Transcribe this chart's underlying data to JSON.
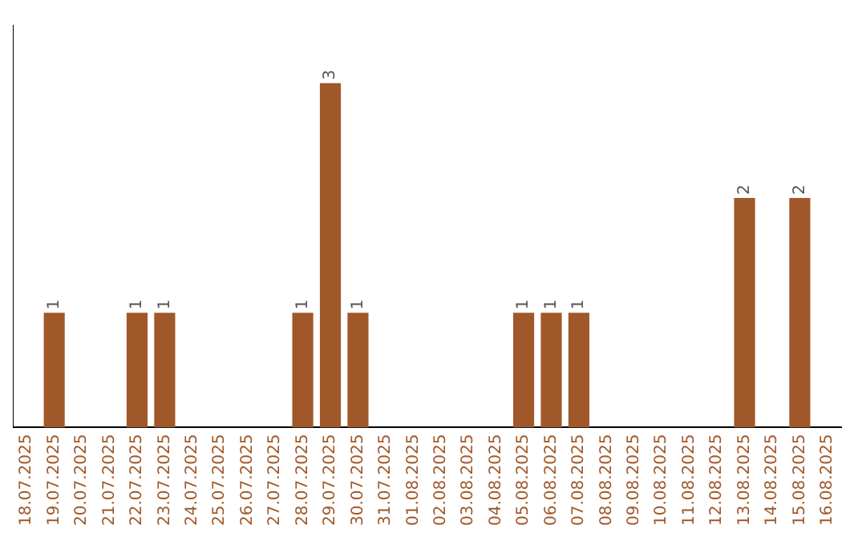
{
  "chart_data": {
    "type": "bar",
    "categories": [
      "18.07.2025",
      "19.07.2025",
      "20.07.2025",
      "21.07.2025",
      "22.07.2025",
      "23.07.2025",
      "24.07.2025",
      "25.07.2025",
      "26.07.2025",
      "27.07.2025",
      "28.07.2025",
      "29.07.2025",
      "30.07.2025",
      "31.07.2025",
      "01.08.2025",
      "02.08.2025",
      "03.08.2025",
      "04.08.2025",
      "05.08.2025",
      "06.08.2025",
      "07.08.2025",
      "08.08.2025",
      "09.08.2025",
      "10.08.2025",
      "11.08.2025",
      "12.08.2025",
      "13.08.2025",
      "14.08.2025",
      "15.08.2025",
      "16.08.2025"
    ],
    "values": [
      0,
      1,
      0,
      0,
      1,
      1,
      0,
      0,
      0,
      0,
      1,
      3,
      1,
      0,
      0,
      0,
      0,
      0,
      1,
      1,
      1,
      0,
      0,
      0,
      0,
      0,
      2,
      0,
      2,
      0
    ],
    "value_labels": [
      null,
      "1",
      null,
      null,
      "1",
      "1",
      null,
      null,
      null,
      null,
      "1",
      "3",
      "1",
      null,
      null,
      null,
      null,
      null,
      "1",
      "1",
      "1",
      null,
      null,
      null,
      null,
      null,
      "2",
      null,
      "2",
      null
    ],
    "color": "#a0582a",
    "tick_labels": "x",
    "grid": false,
    "legend": false
  }
}
